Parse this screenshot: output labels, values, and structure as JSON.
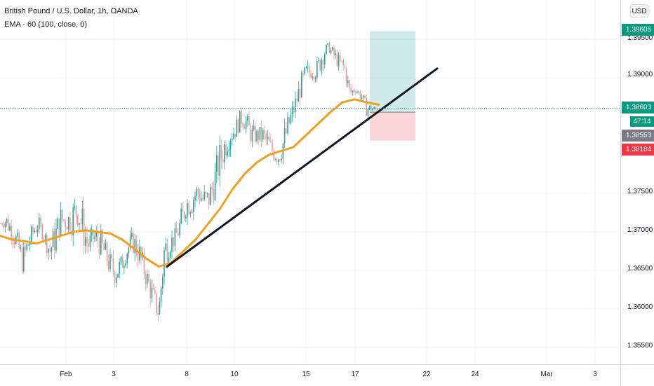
{
  "legend": {
    "title": "British Pound / U.S. Dollar, 1h, OANDA",
    "indicator": "EMA · 60 (100, close, 0)"
  },
  "currency": "USD",
  "price_axis": {
    "ticks": [
      "1.39500",
      "1.39000",
      "1.37500",
      "1.37000",
      "1.36500",
      "1.36000",
      "1.35500"
    ],
    "tags": [
      {
        "label": "1.39605",
        "value": 1.39605,
        "color": "#089981"
      },
      {
        "label": "1.38603",
        "value": 1.38603,
        "color": "#089981"
      },
      {
        "label": "1.38553",
        "value": 1.38553,
        "color": "#787b86"
      },
      {
        "label": "1.38184",
        "value": 1.38184,
        "color": "#f23645"
      }
    ],
    "countdown": "47:14"
  },
  "time_axis": {
    "ticks": [
      "Feb",
      "3",
      "8",
      "10",
      "15",
      "17",
      "22",
      "24",
      "Mar",
      "3"
    ]
  },
  "chart_data": {
    "type": "candlestick",
    "symbol": "British Pound / U.S. Dollar",
    "interval": "1h",
    "source": "OANDA",
    "ylim": [
      1.353,
      1.398
    ],
    "price_ticks": [
      1.395,
      1.39,
      1.375,
      1.37,
      1.365,
      1.36,
      1.355
    ],
    "last_price": 1.38603,
    "price_path": [
      [
        1.371,
        1.3712
      ],
      [
        1.37,
        1.3728
      ],
      [
        1.369,
        1.3715
      ],
      [
        1.367,
        1.3702
      ],
      [
        1.3645,
        1.368
      ],
      [
        1.3665,
        1.37
      ],
      [
        1.369,
        1.3712
      ],
      [
        1.37,
        1.372
      ],
      [
        1.3685,
        1.3705
      ],
      [
        1.366,
        1.369
      ],
      [
        1.367,
        1.3715
      ],
      [
        1.37,
        1.3735
      ],
      [
        1.37,
        1.3725
      ],
      [
        1.3695,
        1.374
      ],
      [
        1.371,
        1.375
      ],
      [
        1.368,
        1.3735
      ],
      [
        1.3665,
        1.37
      ],
      [
        1.368,
        1.3705
      ],
      [
        1.367,
        1.371
      ],
      [
        1.366,
        1.369
      ],
      [
        1.364,
        1.3675
      ],
      [
        1.363,
        1.3665
      ],
      [
        1.364,
        1.367
      ],
      [
        1.366,
        1.3685
      ],
      [
        1.3675,
        1.37
      ],
      [
        1.366,
        1.37
      ],
      [
        1.364,
        1.3675
      ],
      [
        1.362,
        1.365
      ],
      [
        1.3595,
        1.363
      ],
      [
        1.358,
        1.361
      ],
      [
        1.365,
        1.37
      ],
      [
        1.367,
        1.37
      ],
      [
        1.368,
        1.3705
      ],
      [
        1.369,
        1.373
      ],
      [
        1.372,
        1.375
      ],
      [
        1.372,
        1.376
      ],
      [
        1.374,
        1.3765
      ],
      [
        1.3725,
        1.376
      ],
      [
        1.372,
        1.376
      ],
      [
        1.374,
        1.378
      ],
      [
        1.3765,
        1.3815
      ],
      [
        1.379,
        1.383
      ],
      [
        1.381,
        1.384
      ],
      [
        1.382,
        1.3845
      ],
      [
        1.3835,
        1.386
      ],
      [
        1.383,
        1.3855
      ],
      [
        1.381,
        1.384
      ],
      [
        1.3815,
        1.3835
      ],
      [
        1.381,
        1.384
      ],
      [
        1.38,
        1.383
      ],
      [
        1.379,
        1.3815
      ],
      [
        1.3785,
        1.381
      ],
      [
        1.38,
        1.384
      ],
      [
        1.383,
        1.386
      ],
      [
        1.385,
        1.388
      ],
      [
        1.3875,
        1.3905
      ],
      [
        1.389,
        1.392
      ],
      [
        1.39,
        1.3915
      ],
      [
        1.3895,
        1.3925
      ],
      [
        1.3915,
        1.3945
      ],
      [
        1.3935,
        1.3945
      ],
      [
        1.392,
        1.394
      ],
      [
        1.391,
        1.393
      ],
      [
        1.39,
        1.3925
      ],
      [
        1.387,
        1.389
      ],
      [
        1.388,
        1.389
      ],
      [
        1.387,
        1.3885
      ],
      [
        1.385,
        1.387
      ],
      [
        1.3855,
        1.3865
      ],
      [
        1.3858,
        1.386
      ]
    ],
    "ema": {
      "name": "EMA · 60 (100, close, 0)",
      "color": "#f0a020",
      "values": [
        1.3695,
        1.369,
        1.3688,
        1.3685,
        1.369,
        1.3695,
        1.37,
        1.3702,
        1.37,
        1.3698,
        1.369,
        1.3678,
        1.3665,
        1.3655,
        1.366,
        1.3675,
        1.369,
        1.371,
        1.373,
        1.3755,
        1.3775,
        1.379,
        1.38,
        1.3805,
        1.381,
        1.3825,
        1.384,
        1.3855,
        1.3868,
        1.3872,
        1.3868,
        1.3865
      ]
    },
    "trendline": {
      "start_price": 1.3655,
      "end_price": 1.3912
    },
    "position": {
      "type": "long",
      "entry": 1.38553,
      "target": 1.39605,
      "stop": 1.38184
    },
    "x_ticks": [
      "Feb",
      "3",
      "8",
      "10",
      "15",
      "17",
      "22",
      "24",
      "Mar",
      "3"
    ]
  }
}
